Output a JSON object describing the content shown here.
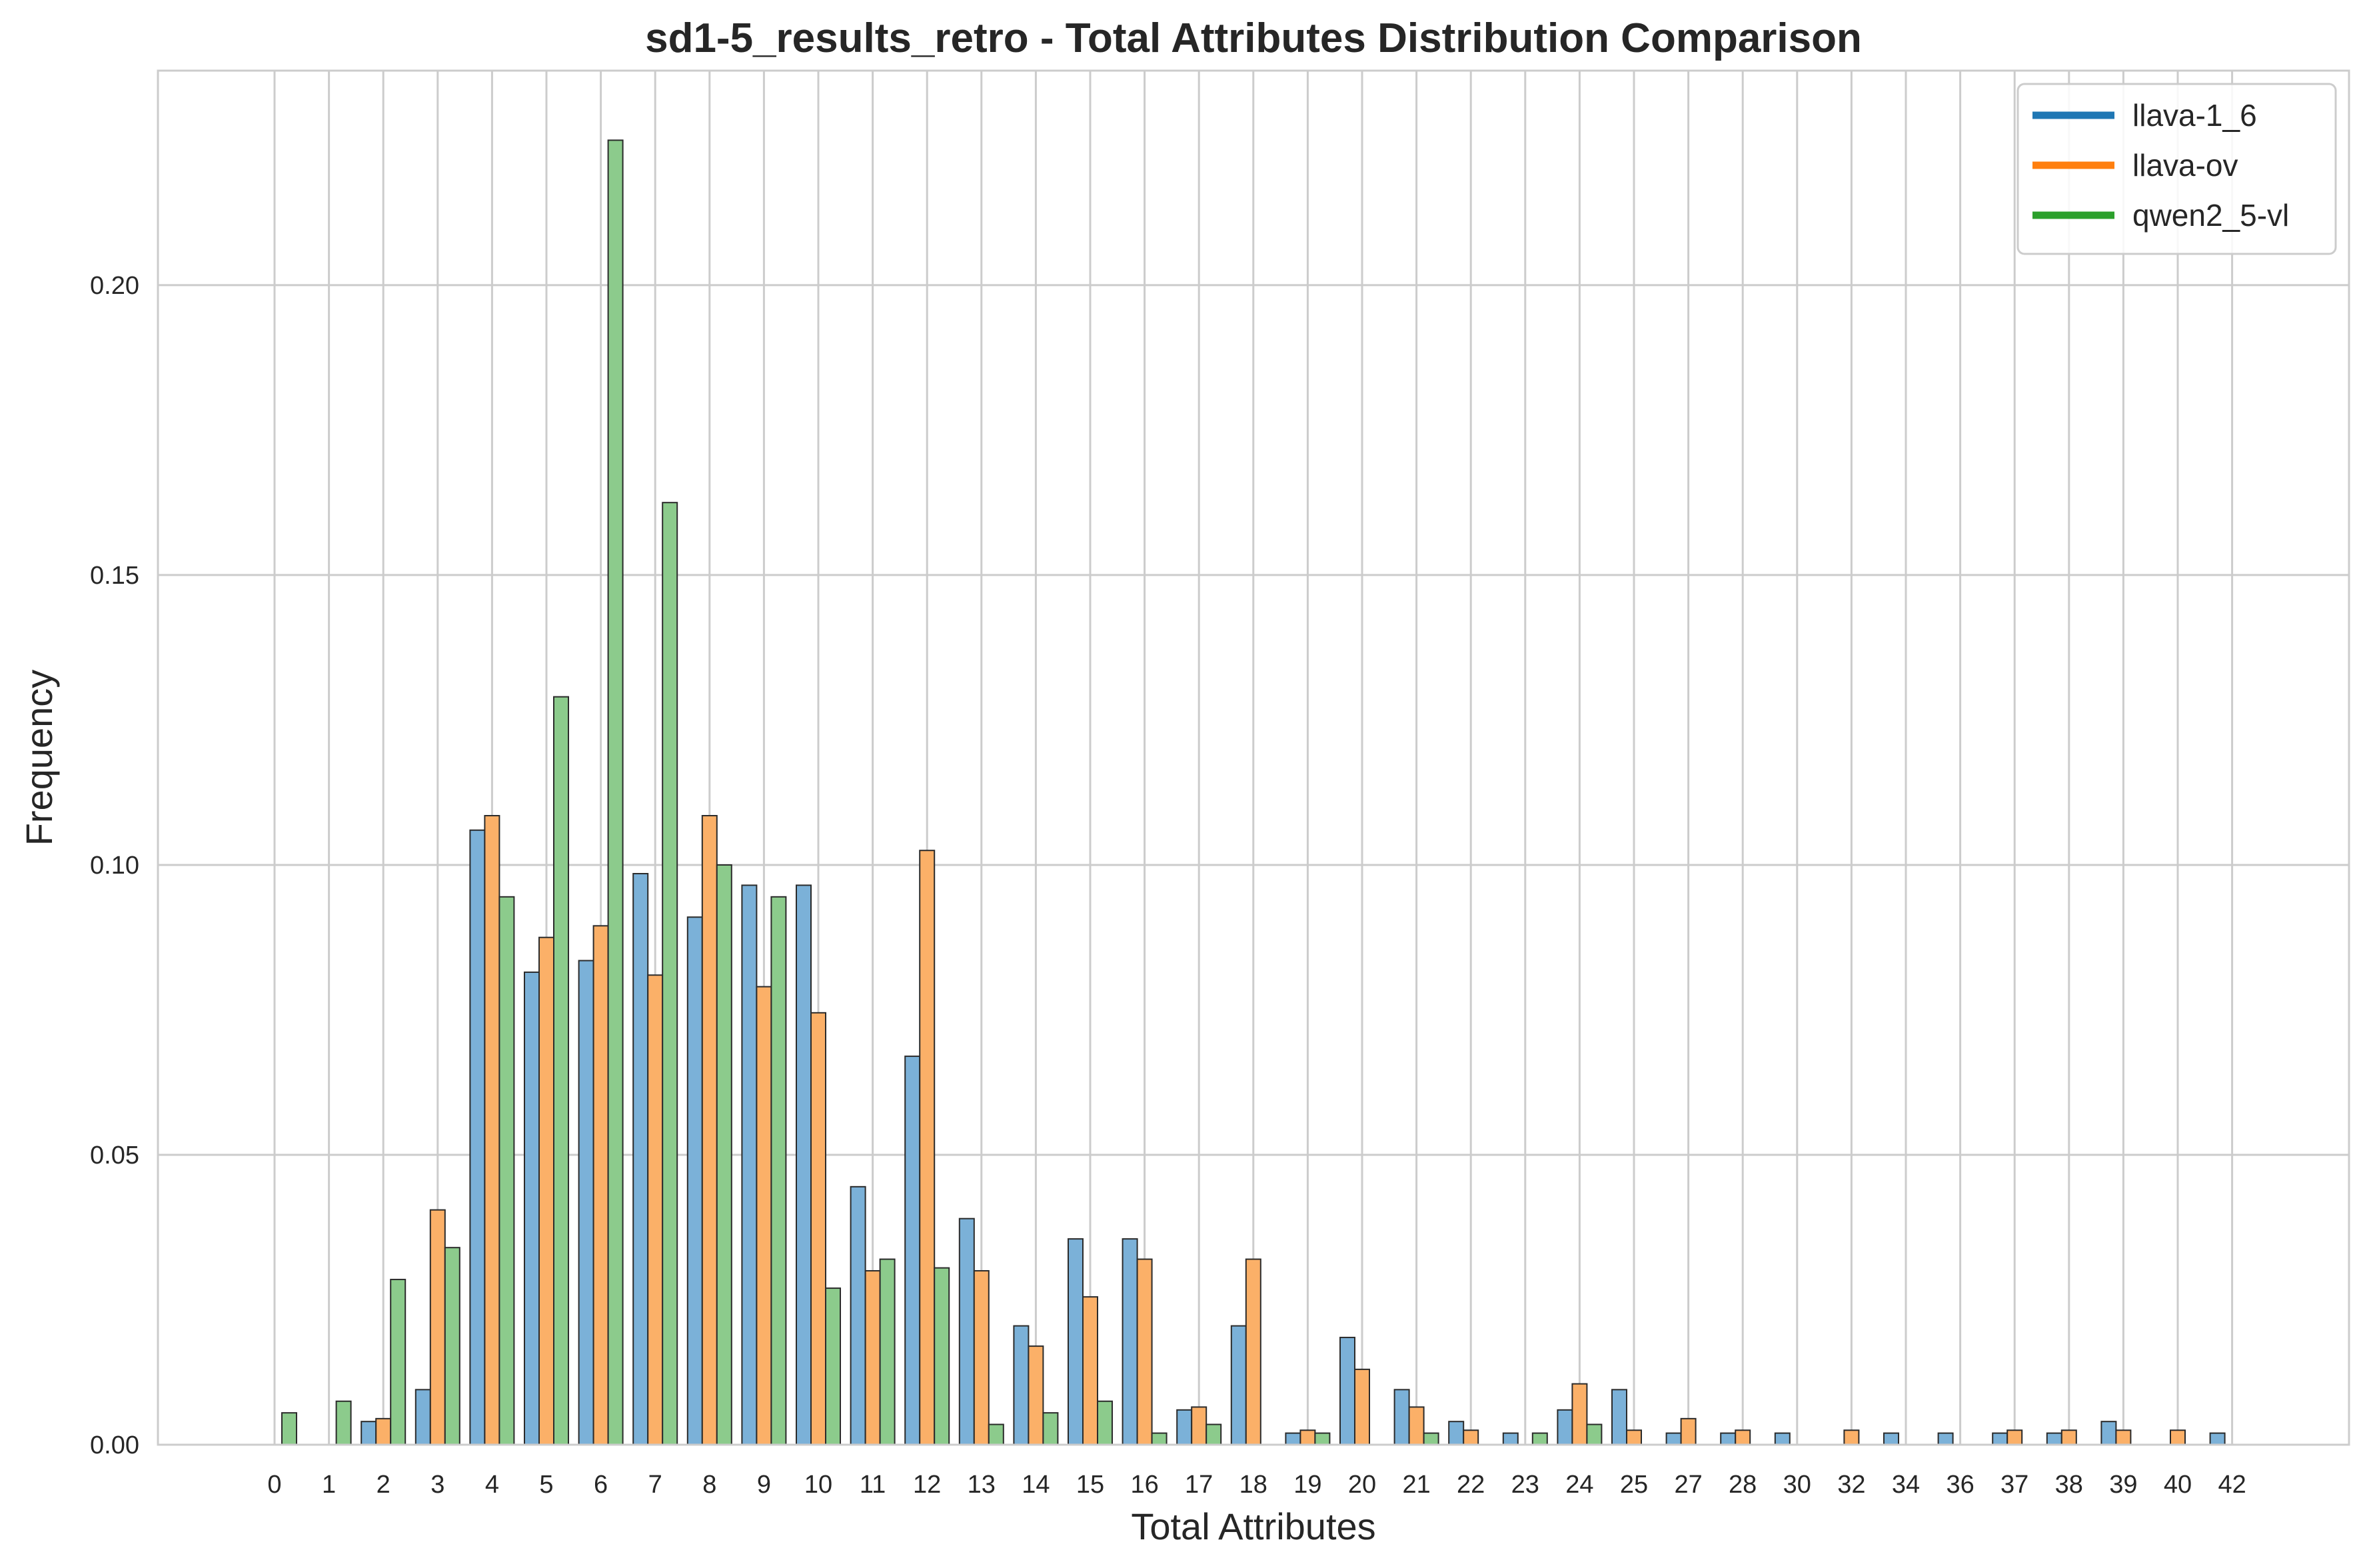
{
  "chart_data": {
    "type": "bar",
    "title": "sd1-5_results_retro - Total Attributes Distribution Comparison",
    "xlabel": "Total Attributes",
    "ylabel": "Frequency",
    "ylim": [
      0,
      0.237
    ],
    "yticks": [
      "0.00",
      "0.05",
      "0.10",
      "0.15",
      "0.20"
    ],
    "ytick_values": [
      0,
      0.05,
      0.1,
      0.15,
      0.2
    ],
    "grid": true,
    "legend_position": "top-right",
    "categories": [
      "0",
      "1",
      "2",
      "3",
      "4",
      "5",
      "6",
      "7",
      "8",
      "9",
      "10",
      "11",
      "12",
      "13",
      "14",
      "15",
      "16",
      "17",
      "18",
      "19",
      "20",
      "21",
      "22",
      "23",
      "24",
      "25",
      "27",
      "28",
      "30",
      "32",
      "34",
      "36",
      "37",
      "38",
      "39",
      "40",
      "42"
    ],
    "series": [
      {
        "name": "llava-1_6",
        "color": "#1f77b4",
        "fill": "#7bb1d8",
        "values": [
          0,
          0,
          0.004,
          0.0095,
          0.106,
          0.0815,
          0.0835,
          0.0985,
          0.091,
          0.0965,
          0.0965,
          0.0445,
          0.067,
          0.039,
          0.0205,
          0.0355,
          0.0355,
          0.006,
          0.0205,
          0.002,
          0.0185,
          0.0095,
          0.004,
          0.002,
          0.006,
          0.0095,
          0.002,
          0.002,
          0.002,
          0,
          0.002,
          0.002,
          0.002,
          0.002,
          0.004,
          0,
          0.002
        ]
      },
      {
        "name": "llava-ov",
        "color": "#ff7f0e",
        "fill": "#fbb068",
        "values": [
          0,
          0,
          0.0045,
          0.0405,
          0.1085,
          0.0875,
          0.0895,
          0.081,
          0.1085,
          0.079,
          0.0745,
          0.03,
          0.1025,
          0.03,
          0.017,
          0.0255,
          0.032,
          0.0065,
          0.032,
          0.0025,
          0.013,
          0.0065,
          0.0025,
          0,
          0.0105,
          0.0025,
          0.0045,
          0.0025,
          0,
          0.0025,
          0,
          0,
          0.0025,
          0.0025,
          0.0025,
          0.0025,
          0
        ]
      },
      {
        "name": "qwen2_5-vl",
        "color": "#2ca02c",
        "fill": "#8ccb8c",
        "values": [
          0.0055,
          0.0075,
          0.0285,
          0.034,
          0.0945,
          0.129,
          0.225,
          0.1625,
          0.1,
          0.0945,
          0.027,
          0.032,
          0.0305,
          0.0035,
          0.0055,
          0.0075,
          0.002,
          0.0035,
          0,
          0.002,
          0,
          0.002,
          0,
          0.002,
          0.0035,
          0,
          0,
          0,
          0,
          0,
          0,
          0,
          0,
          0,
          0,
          0,
          0
        ]
      }
    ]
  }
}
